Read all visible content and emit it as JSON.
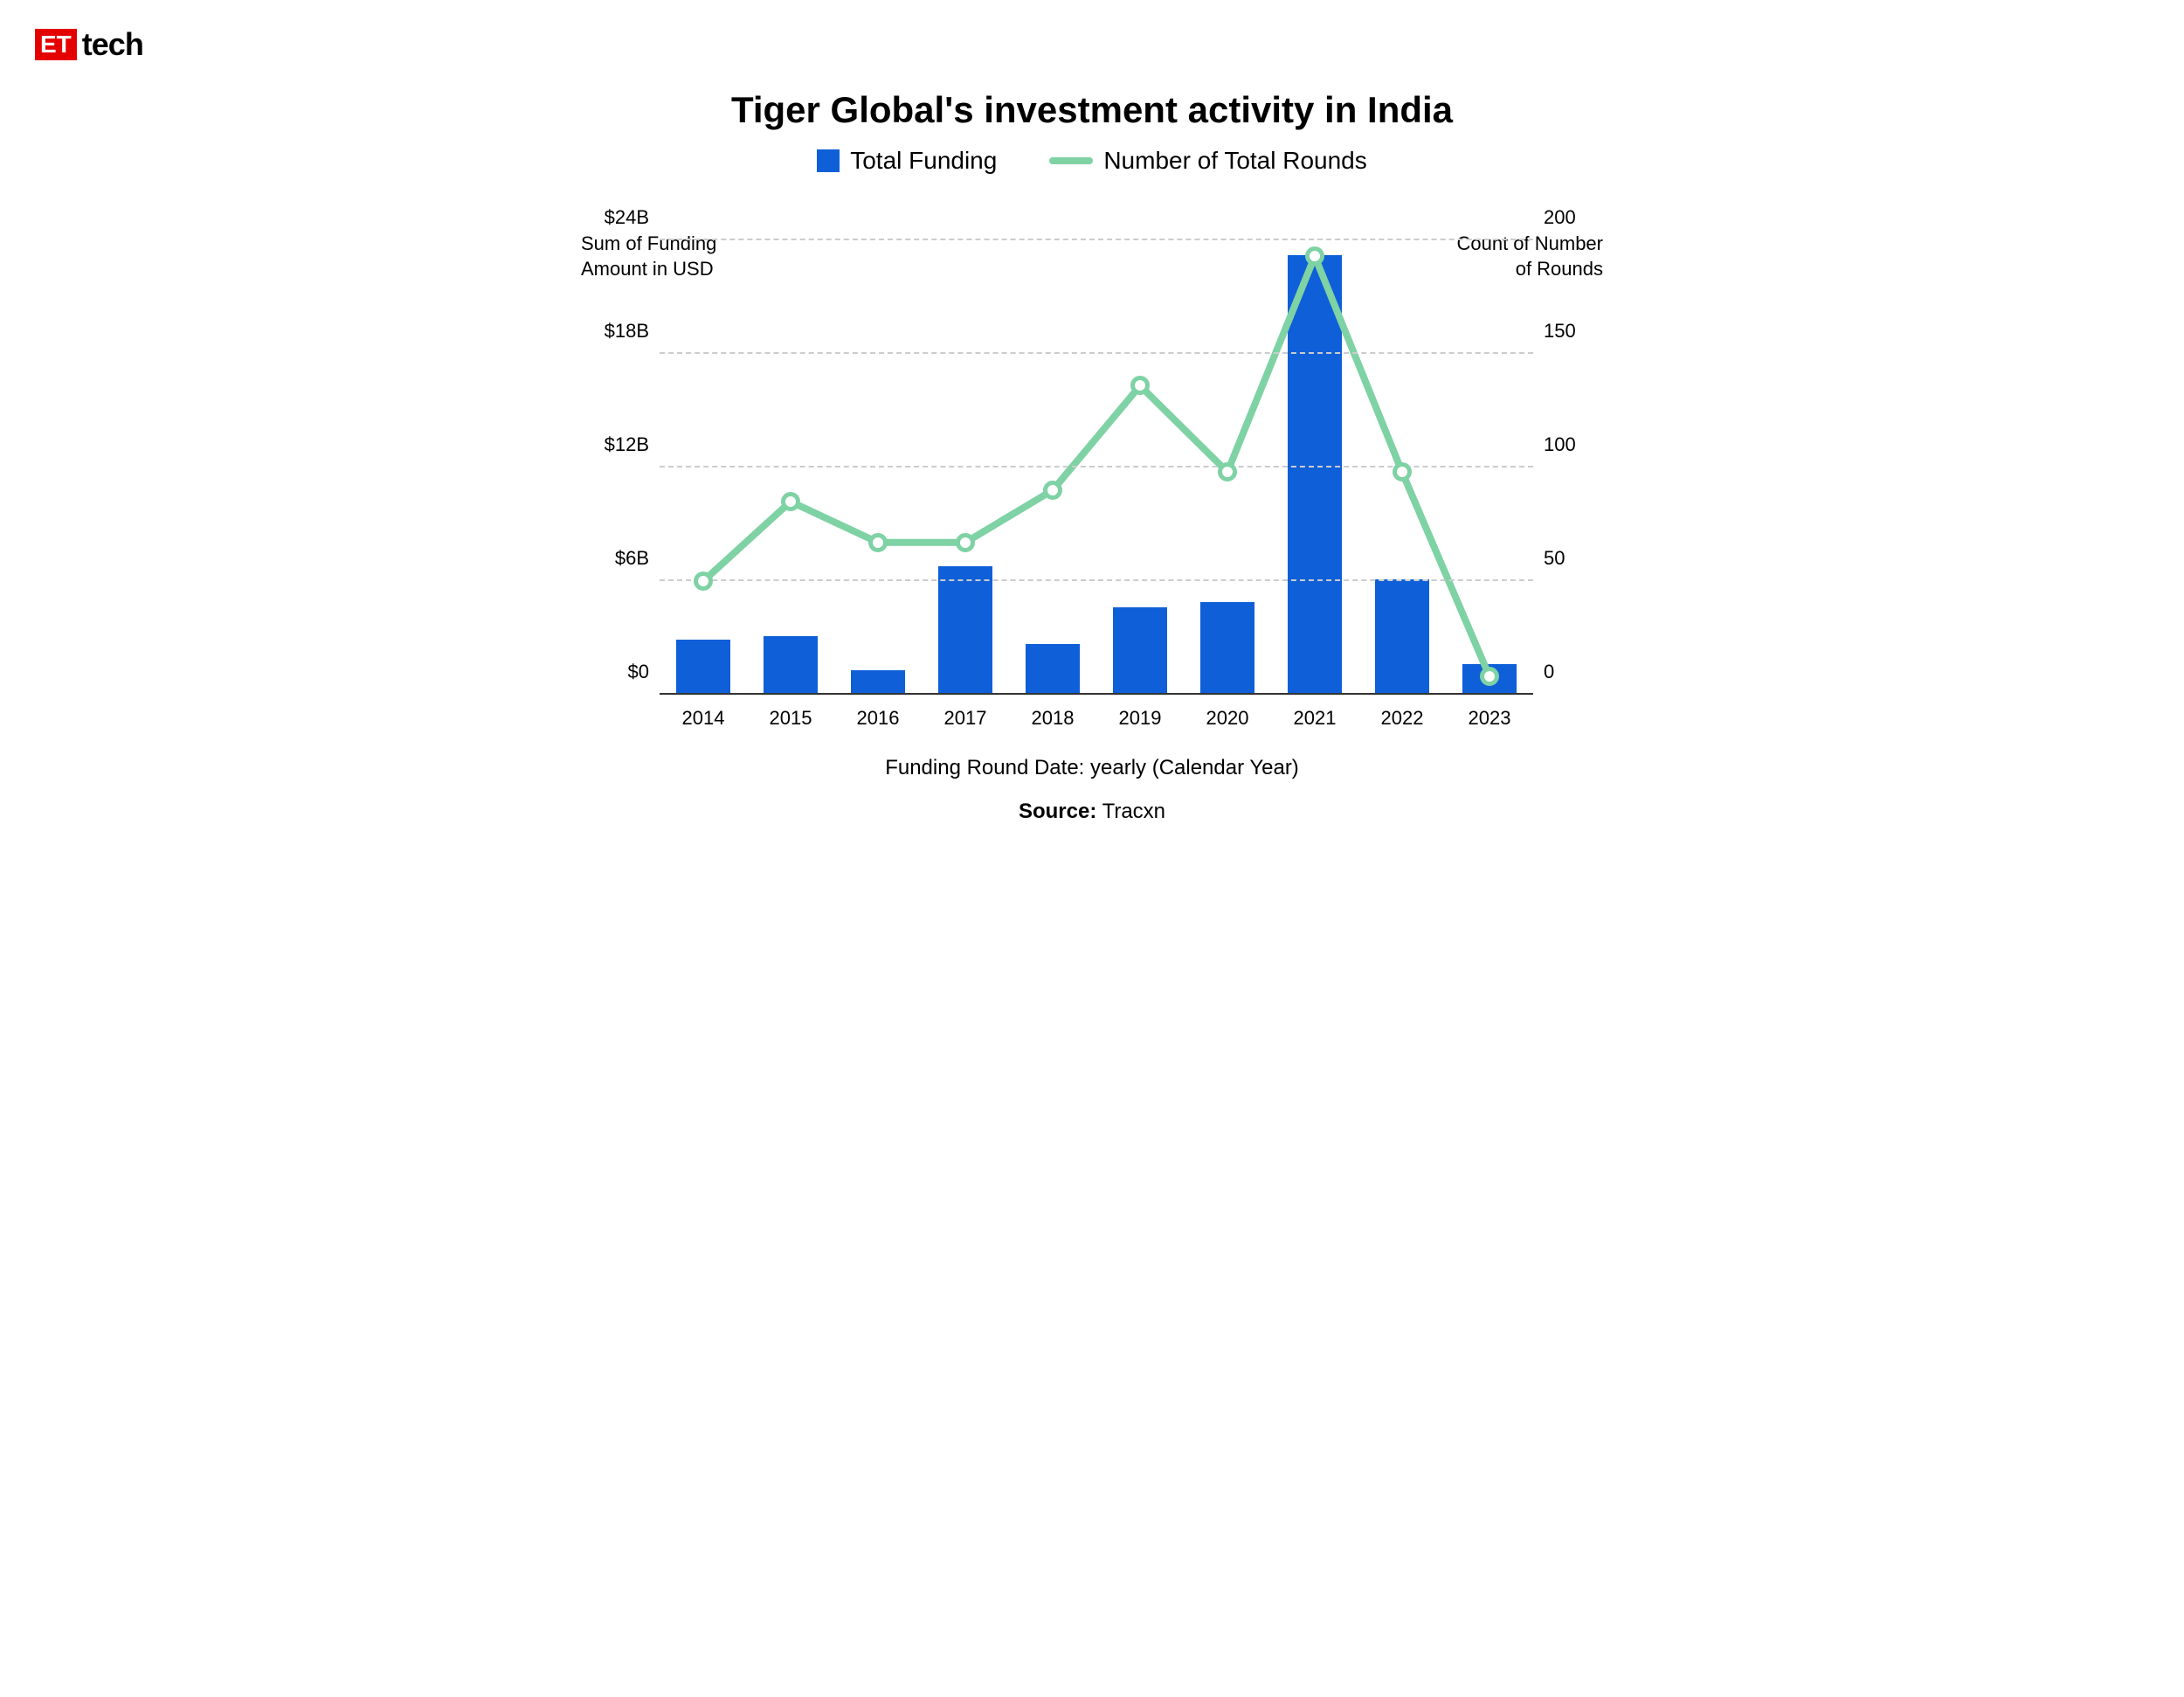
{
  "logo": {
    "et": "ET",
    "tech": "tech",
    "et_bg": "#e50000",
    "et_fg": "#ffffff"
  },
  "title": "Tiger Global's investment activity in India",
  "legend": {
    "bar_label": "Total Funding",
    "line_label": "Number of Total Rounds"
  },
  "y_left": {
    "title": "Sum of Funding\nAmount in USD",
    "ticks": [
      "$0",
      "$6B",
      "$12B",
      "$18B",
      "$24B"
    ],
    "min": 0,
    "max": 24
  },
  "y_right": {
    "title": "Count of Number\nof Rounds",
    "ticks": [
      "0",
      "50",
      "100",
      "150",
      "200"
    ],
    "min": 0,
    "max": 200
  },
  "x": {
    "title": "Funding Round Date: yearly (Calendar Year)",
    "labels": [
      "2014",
      "2015",
      "2016",
      "2017",
      "2018",
      "2019",
      "2020",
      "2021",
      "2022",
      "2023"
    ]
  },
  "bars": {
    "values": [
      2.9,
      3.1,
      1.3,
      6.8,
      2.7,
      4.6,
      4.9,
      23.2,
      6.1,
      1.6
    ],
    "color": "#0e5fd8"
  },
  "line": {
    "values": [
      50,
      85,
      67,
      67,
      90,
      136,
      98,
      193,
      98,
      8
    ],
    "stroke": "#7ed2a4",
    "marker_stroke": "#7ed2a4",
    "marker_fill": "#ffffff",
    "stroke_width": 8,
    "marker_radius": 11
  },
  "grid": {
    "color": "#cccccc"
  },
  "source": {
    "label": "Source:",
    "value": "Tracxn"
  },
  "background": "#ffffff",
  "title_fontsize": 42,
  "tick_fontsize": 22
}
